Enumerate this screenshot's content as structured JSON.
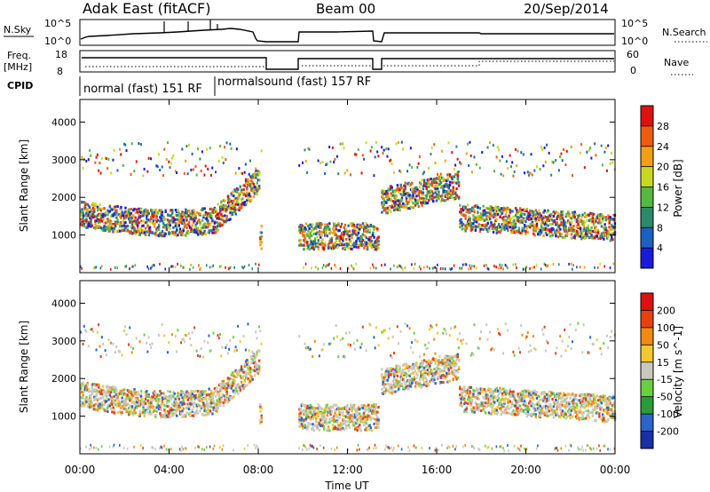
{
  "header": {
    "title": "Adak East (fitACF)",
    "beam": "Beam 00",
    "date": "20/Sep/2014"
  },
  "top_panels": {
    "nsky_label": "N.Sky",
    "nsky_ticks": [
      "10^5",
      "10^0"
    ],
    "nsearch_label": "N.Search",
    "freq_label_1": "Freq.",
    "freq_label_2": "[MHz]",
    "freq_ticks": [
      "18",
      "8"
    ],
    "nave_ticks": [
      "60",
      "0"
    ],
    "nave_label": "Nave",
    "cpid_label": "CPID",
    "modes": [
      "normal (fast) 151 RF",
      "normalsound (fast) 157 RF"
    ]
  },
  "x_axis": {
    "label": "Time UT",
    "ticks": [
      "00:00",
      "04:00",
      "08:00",
      "12:00",
      "16:00",
      "20:00",
      "00:00"
    ]
  },
  "chart_data": [
    {
      "type": "heatmap",
      "panel": "power",
      "ylabel": "Slant Range [km]",
      "yticks": [
        1000,
        2000,
        3000,
        4000
      ],
      "ylim": [
        0,
        4600
      ],
      "xlim": [
        0,
        24
      ],
      "colorbar": {
        "label": "Power [dB]",
        "ticks": [
          "4",
          "8",
          "12",
          "16",
          "20",
          "24",
          "28"
        ],
        "colors": [
          "#1a1adc",
          "#1f5fc0",
          "#2c8a6a",
          "#55b840",
          "#c8d820",
          "#f0a010",
          "#f05a10",
          "#e01010"
        ]
      },
      "gaps_hours": [
        [
          8.1,
          9.8
        ],
        [
          13.4,
          13.5
        ]
      ]
    },
    {
      "type": "heatmap",
      "panel": "velocity",
      "ylabel": "Slant Range [km]",
      "yticks": [
        1000,
        2000,
        3000,
        4000
      ],
      "ylim": [
        0,
        4600
      ],
      "xlim": [
        0,
        24
      ],
      "colorbar": {
        "label": "Velocity [m s^-1]",
        "ticks": [
          "200",
          "100",
          "50",
          "15",
          "-15",
          "-50",
          "-100",
          "-200"
        ],
        "colors": [
          "#1a2ea8",
          "#2c64c8",
          "#2a9a3a",
          "#6ad040",
          "#c8c8c0",
          "#f0c830",
          "#f08a10",
          "#e84010",
          "#e01010"
        ]
      },
      "gaps_hours": [
        [
          8.1,
          9.8
        ],
        [
          13.4,
          13.5
        ]
      ]
    }
  ]
}
